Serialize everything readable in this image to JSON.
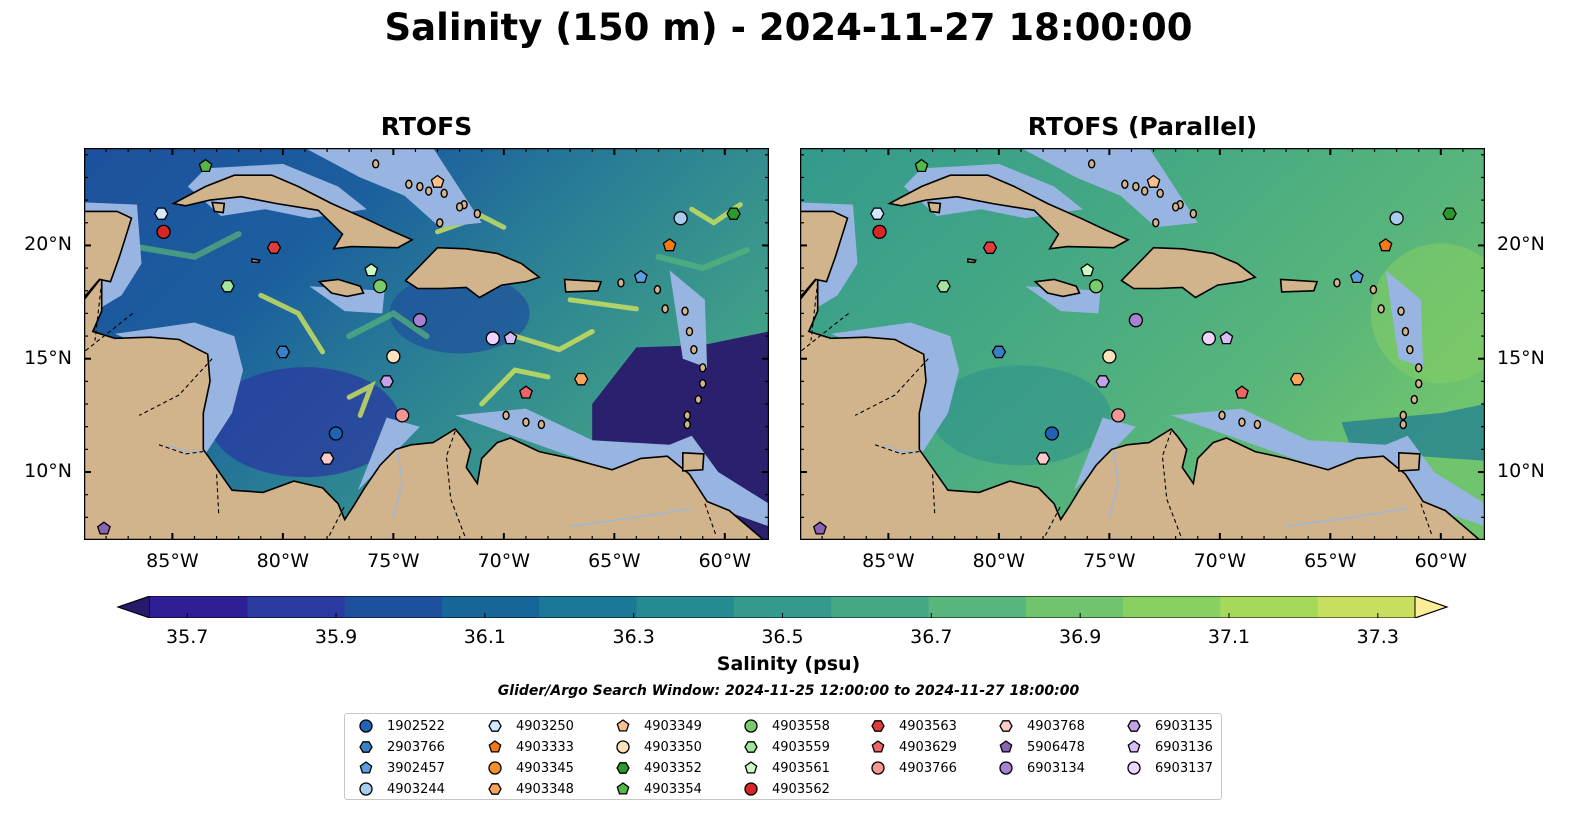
{
  "title": "Salinity (150 m) - 2024-11-27 18:00:00",
  "panels": [
    {
      "title": "RTOFS",
      "style": "eddies"
    },
    {
      "title": "RTOFS (Parallel)",
      "style": "smooth"
    }
  ],
  "map": {
    "extent": {
      "lon_min": -89,
      "lon_max": -58,
      "lat_min": 7,
      "lat_max": 24.3
    },
    "lon_ticks": [
      -85,
      -80,
      -75,
      -70,
      -65,
      -60
    ],
    "lon_tick_labels": [
      "85°W",
      "80°W",
      "75°W",
      "70°W",
      "65°W",
      "60°W"
    ],
    "lat_ticks": [
      20,
      15,
      10
    ],
    "lat_tick_labels": [
      "20°N",
      "15°N",
      "10°N"
    ],
    "colors": {
      "land": "#d2b48c",
      "shelf": "#98b4e0",
      "deep": "#29196d",
      "coast": "#000000"
    }
  },
  "colorbar": {
    "min": 35.6,
    "max": 37.4,
    "label": "Salinity (psu)",
    "ticks": [
      35.7,
      35.9,
      36.1,
      36.3,
      36.5,
      36.7,
      36.9,
      37.1,
      37.3
    ],
    "tick_labels": [
      "35.7",
      "35.9",
      "36.1",
      "36.3",
      "36.5",
      "36.7",
      "36.9",
      "37.1",
      "37.3"
    ],
    "colors": [
      "#29196d",
      "#2f1f96",
      "#2a3aa0",
      "#1e509d",
      "#16669a",
      "#1b7897",
      "#268a92",
      "#339a8d",
      "#44a884",
      "#58b57b",
      "#6fc46d",
      "#88d061",
      "#a6d85a",
      "#c7de5f",
      "#fbee96"
    ]
  },
  "search_window": "Glider/Argo Search Window: 2024-11-25 12:00:00 to 2024-11-27 18:00:00",
  "floats": [
    {
      "id": "1902522",
      "marker": "circle",
      "color": "#1f64b4",
      "lon": -77.6,
      "lat": 11.7
    },
    {
      "id": "2903766",
      "marker": "hexagon",
      "color": "#3a80c8",
      "lon": -80.0,
      "lat": 15.3
    },
    {
      "id": "3902457",
      "marker": "pentagon",
      "color": "#5aa0e0",
      "lon": -63.8,
      "lat": 18.6
    },
    {
      "id": "4903244",
      "marker": "circle",
      "color": "#a8ccec",
      "lon": -62.0,
      "lat": 21.2
    },
    {
      "id": "4903250",
      "marker": "hexagon",
      "color": "#d2eaff",
      "lon": -85.5,
      "lat": 21.4
    },
    {
      "id": "4903333",
      "marker": "pentagon",
      "color": "#f57a14",
      "lon": -62.5,
      "lat": 20.0
    },
    {
      "id": "4903345",
      "marker": "circle",
      "color": "#f59028",
      "lon": null,
      "lat": null
    },
    {
      "id": "4903348",
      "marker": "hexagon",
      "color": "#fca45a",
      "lon": -66.5,
      "lat": 14.1
    },
    {
      "id": "4903349",
      "marker": "pentagon",
      "color": "#fcbe8a",
      "lon": -73.0,
      "lat": 22.8
    },
    {
      "id": "4903350",
      "marker": "circle",
      "color": "#fee2be",
      "lon": -75.0,
      "lat": 15.1
    },
    {
      "id": "4903352",
      "marker": "hexagon",
      "color": "#2a9a2a",
      "lon": -59.6,
      "lat": 21.4
    },
    {
      "id": "4903354",
      "marker": "pentagon",
      "color": "#52b848",
      "lon": -83.5,
      "lat": 23.5
    },
    {
      "id": "4903558",
      "marker": "circle",
      "color": "#78cc6c",
      "lon": -75.6,
      "lat": 18.2
    },
    {
      "id": "4903559",
      "marker": "hexagon",
      "color": "#a4e49c",
      "lon": -82.5,
      "lat": 18.2
    },
    {
      "id": "4903561",
      "marker": "pentagon",
      "color": "#cafac2",
      "lon": -76.0,
      "lat": 18.9
    },
    {
      "id": "4903562",
      "marker": "circle",
      "color": "#d62626",
      "lon": -85.4,
      "lat": 20.6
    },
    {
      "id": "4903563",
      "marker": "hexagon",
      "color": "#e03c3c",
      "lon": -80.4,
      "lat": 19.9
    },
    {
      "id": "4903629",
      "marker": "pentagon",
      "color": "#ec6464",
      "lon": -69.0,
      "lat": 13.5
    },
    {
      "id": "4903766",
      "marker": "circle",
      "color": "#f49696",
      "lon": -74.6,
      "lat": 12.5
    },
    {
      "id": "4903768",
      "marker": "hexagon",
      "color": "#fccccc",
      "lon": -78.0,
      "lat": 10.6
    },
    {
      "id": "5906478",
      "marker": "pentagon",
      "color": "#8a64b4",
      "lon": -88.1,
      "lat": 7.5
    },
    {
      "id": "6903134",
      "marker": "circle",
      "color": "#a682d0",
      "lon": -73.8,
      "lat": 16.7
    },
    {
      "id": "6903135",
      "marker": "hexagon",
      "color": "#c4a2ea",
      "lon": -75.3,
      "lat": 14.0
    },
    {
      "id": "6903136",
      "marker": "pentagon",
      "color": "#d8bef8",
      "lon": -69.7,
      "lat": 15.9
    },
    {
      "id": "6903137",
      "marker": "circle",
      "color": "#eed4fe",
      "lon": -70.5,
      "lat": 15.9
    }
  ]
}
